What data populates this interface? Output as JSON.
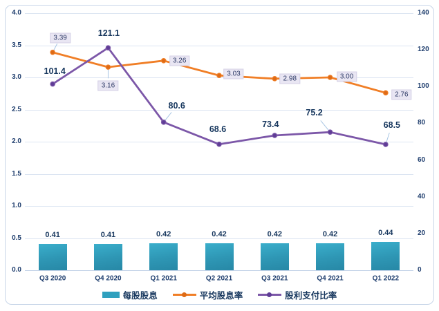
{
  "chart_style": {
    "background": "#FFFFFF",
    "border_color": "#C7D5E8",
    "grid_color": "#DCE5F2",
    "axis_line_color": "#C3D2E8",
    "text_color": "#17375E",
    "leader_color": "#A9C6E4",
    "label_box_bg": "#E9E6F3",
    "bar_color": "#2FA0BE",
    "orange": "#F07E26",
    "purple": "#7C57A8"
  },
  "chart_data": {
    "type": "combo",
    "categories": [
      "Q3 2020",
      "Q4 2020",
      "Q1 2021",
      "Q2 2021",
      "Q3 2021",
      "Q4 2021",
      "Q1 2022"
    ],
    "series": [
      {
        "name": "每股股息",
        "type": "bar",
        "axis": "left",
        "color": "#2FA0BE",
        "values": [
          0.41,
          0.41,
          0.42,
          0.42,
          0.42,
          0.42,
          0.44
        ],
        "labels": [
          "0.41",
          "0.41",
          "0.42",
          "0.42",
          "0.42",
          "0.42",
          "0.44"
        ]
      },
      {
        "name": "平均股息率",
        "type": "line",
        "axis": "left",
        "color": "#F07E26",
        "marker_color": "#DE6B16",
        "values": [
          3.39,
          3.16,
          3.26,
          3.03,
          2.98,
          3.0,
          2.76
        ],
        "labels": [
          "3.39",
          "3.16",
          "3.26",
          "3.03",
          "2.98",
          "3.00",
          "2.76"
        ]
      },
      {
        "name": "股利支付比率",
        "type": "line",
        "axis": "right",
        "color": "#7C57A8",
        "marker_color": "#5F3D96",
        "values": [
          101.4,
          121.1,
          80.6,
          68.6,
          73.4,
          75.2,
          68.5
        ],
        "labels": [
          "101.4",
          "121.1",
          "80.6",
          "68.6",
          "73.4",
          "75.2",
          "68.5"
        ]
      }
    ],
    "left_axis": {
      "min": 0,
      "max": 4,
      "tick_step": 0.5,
      "ticks": [
        "4.0",
        "3.5",
        "3.0",
        "2.5",
        "2.0",
        "1.5",
        "1.0",
        "0.5",
        "0.0"
      ]
    },
    "right_axis": {
      "min": 0,
      "max": 140,
      "tick_step": 20,
      "ticks": [
        "140",
        "120",
        "100",
        "80",
        "60",
        "40",
        "20",
        "0"
      ]
    },
    "grid": true,
    "legend_position": "bottom"
  }
}
